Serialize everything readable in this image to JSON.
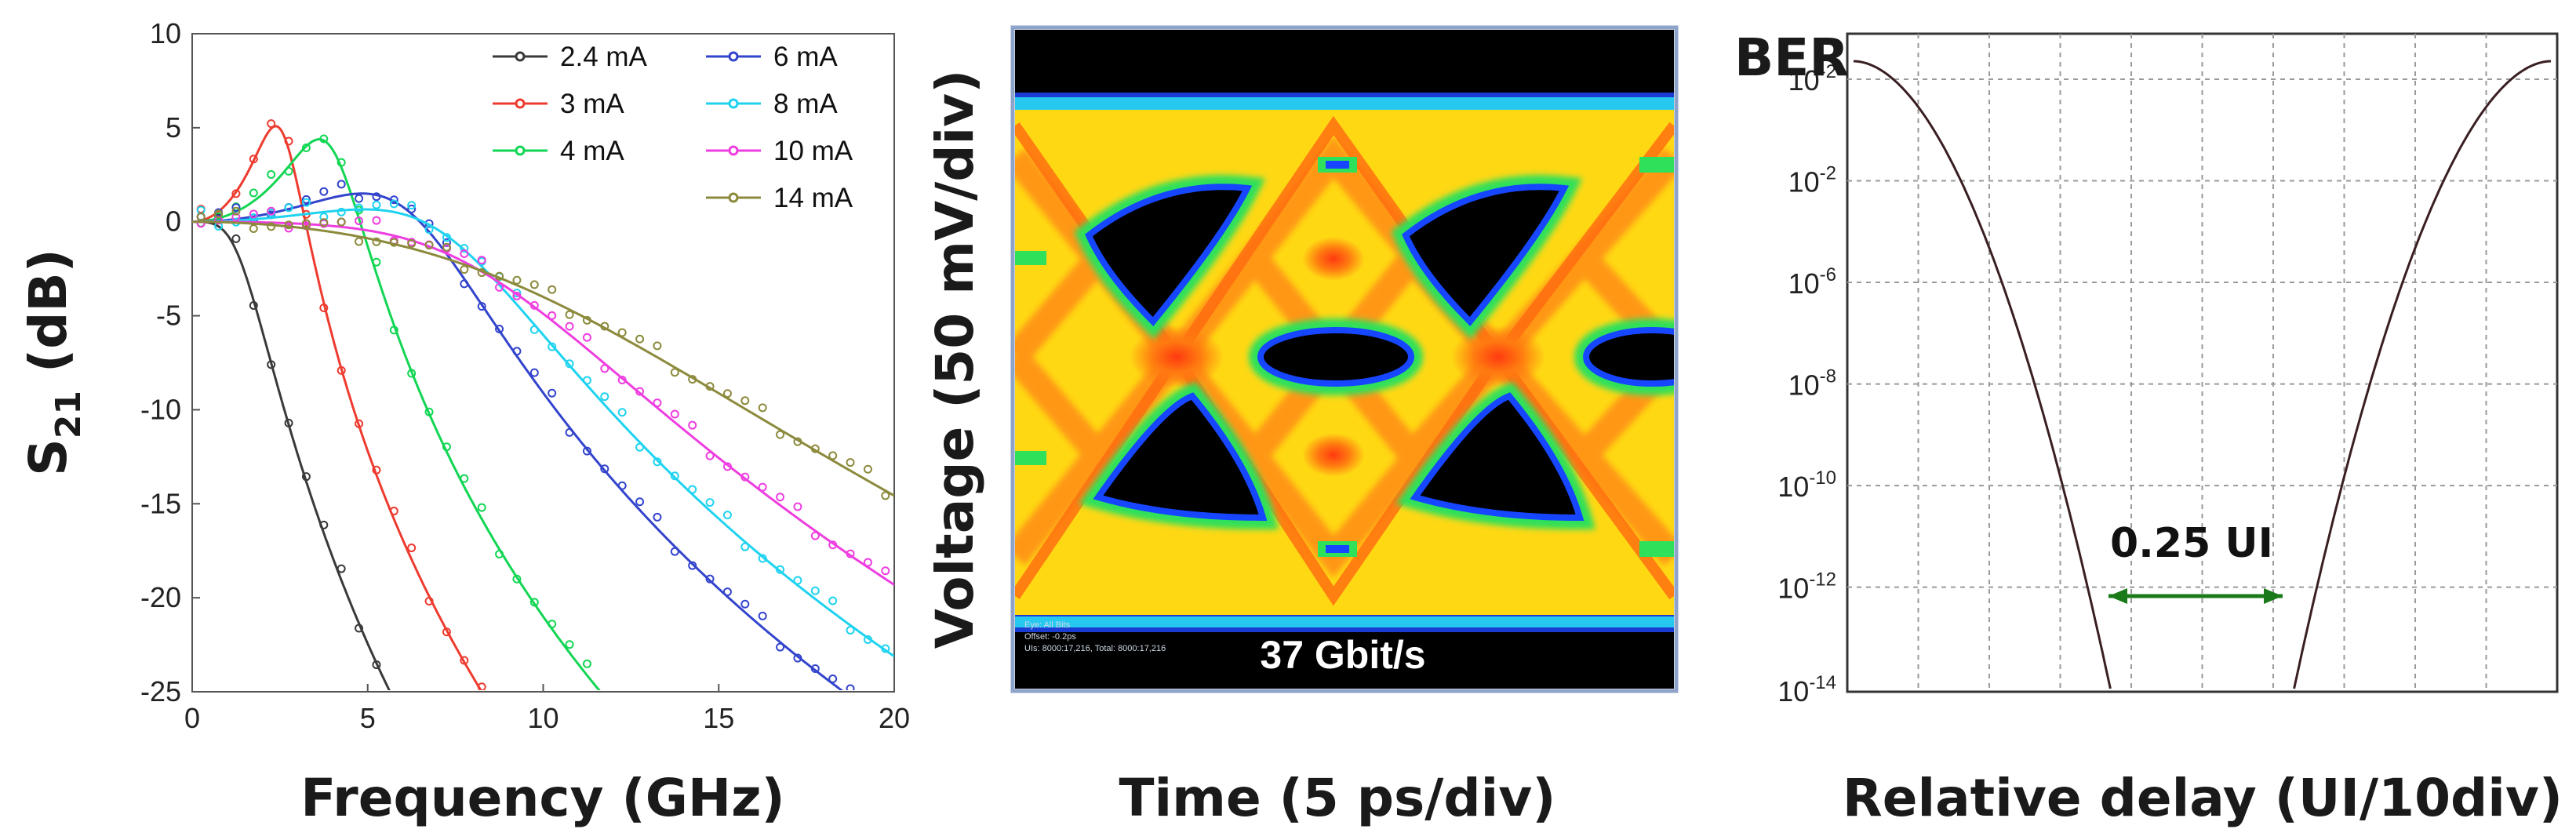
{
  "chart_data": [
    {
      "type": "line",
      "xlabel": "Frequency (GHz)",
      "ylabel_main": "S",
      "ylabel_sub": "21",
      "ylabel_unit": " (dB)",
      "xlim": [
        0,
        20
      ],
      "ylim": [
        -25,
        10
      ],
      "xticks": [
        "0",
        "5",
        "10",
        "15",
        "20"
      ],
      "yticks": [
        "10",
        "5",
        "0",
        "-5",
        "-10",
        "-15",
        "-20",
        "-25"
      ],
      "legend_placement": "top-right",
      "series": [
        {
          "name": "2.4 mA",
          "color": "#3a3a3a",
          "fr": 1.6,
          "zeta": 0.7,
          "fp": 5.5
        },
        {
          "name": "3 mA",
          "color": "#ee3b2f",
          "fr": 2.6,
          "zeta": 0.26,
          "fp": 5.0
        },
        {
          "name": "4 mA",
          "color": "#12d653",
          "fr": 4.0,
          "zeta": 0.26,
          "fp": 5.5
        },
        {
          "name": "6 mA",
          "color": "#3344cc",
          "fr": 6.4,
          "zeta": 0.4,
          "fp": 9.0
        },
        {
          "name": "8 mA",
          "color": "#1fd3f0",
          "fr": 7.6,
          "zeta": 0.46,
          "fp": 10.0
        },
        {
          "name": "10 mA",
          "color": "#ee3ee0",
          "fr": 9.3,
          "zeta": 0.6,
          "fp": 11.0
        },
        {
          "name": "14 mA",
          "color": "#8c8a3c",
          "fr": 12.5,
          "zeta": 0.74,
          "fp": 12.5
        }
      ]
    },
    {
      "type": "heatmap",
      "xlabel": "Time (5 ps/div)",
      "ylabel": "Voltage (50 mV/div)",
      "annotation": "37 Gbit/s",
      "info_lines": [
        "Eye: All Bits",
        "Offset: -0.2ps",
        "UIs: 8000:17,216, Total: 8000:17,216"
      ]
    },
    {
      "type": "line",
      "title": "BER",
      "xlabel": "Relative delay (UI/10div)",
      "yscale": "log",
      "yticks": [
        {
          "base": "10",
          "exp": "-2"
        },
        {
          "base": "10",
          "exp": "-2"
        },
        {
          "base": "10",
          "exp": "-6"
        },
        {
          "base": "10",
          "exp": "-8"
        },
        {
          "base": "10",
          "exp": "-10"
        },
        {
          "base": "10",
          "exp": "-12"
        },
        {
          "base": "10",
          "exp": "-14"
        }
      ],
      "xlim": [
        0,
        1
      ],
      "grid": true,
      "opening_label": "0.25 UI",
      "opening_ui": 0.25,
      "opening_at_ber": "1e-12"
    }
  ]
}
